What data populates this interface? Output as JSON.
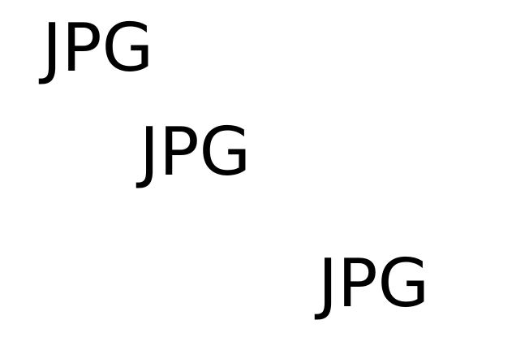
{
  "labels": [
    {
      "text": "JPG"
    },
    {
      "text": "JPG"
    },
    {
      "text": "JPG"
    }
  ],
  "colors": {
    "background": "#ffffff",
    "text": "#000000"
  }
}
